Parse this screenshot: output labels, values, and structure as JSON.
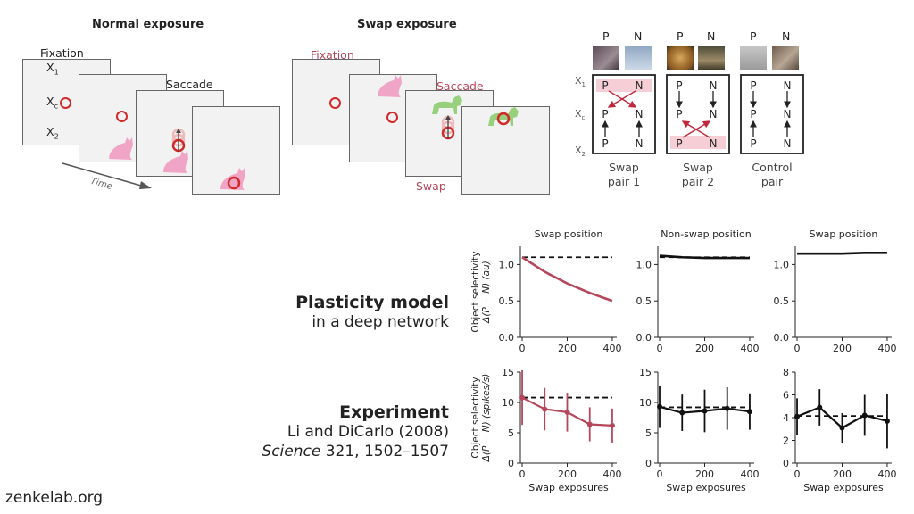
{
  "normal_exposure": {
    "title": "Normal exposure",
    "fixation": "Fixation",
    "saccade": "Saccade",
    "time": "Time",
    "x1": "X",
    "xc": "X",
    "x2": "X",
    "sub1": "1",
    "subc": "c",
    "sub2": "2"
  },
  "swap_exposure": {
    "title": "Swap exposure",
    "fixation": "Fixation",
    "saccade": "Saccade",
    "swap": "Swap"
  },
  "pairs": {
    "p": "P",
    "n": "N",
    "pair1": [
      "Swap",
      "pair 1"
    ],
    "pair2": [
      "Swap",
      "pair 2"
    ],
    "control": [
      "Control",
      "pair"
    ],
    "x1": "X",
    "xc": "X",
    "x2": "X",
    "sub1": "1",
    "subc": "c",
    "sub2": "2"
  },
  "rows": {
    "model_title": "Plasticity model",
    "model_sub": "in a deep network",
    "exp_title": "Experiment",
    "exp_ref": "Li and DiCarlo (2008)",
    "exp_journal": "Science",
    "exp_cite": " 321, 1502–1507"
  },
  "footer": "zenkelab.org",
  "chart_data": [
    {
      "type": "line",
      "title": "Swap position",
      "ylabel_top": "Object selectivity",
      "ylabel_bottom": "Δ(P − N) (au)",
      "x": [
        0,
        100,
        200,
        300,
        400
      ],
      "series": [
        {
          "values": [
            1.1,
            0.9,
            0.74,
            0.61,
            0.5
          ],
          "color": "#b5475a"
        }
      ],
      "baseline": 1.1,
      "ylim": [
        0,
        1.25
      ],
      "yticks": [
        0.0,
        0.5,
        1.0
      ],
      "xticks": [
        0,
        200,
        400
      ]
    },
    {
      "type": "line",
      "title": "Non-swap position",
      "x": [
        0,
        100,
        200,
        300,
        400
      ],
      "series": [
        {
          "values": [
            1.12,
            1.1,
            1.09,
            1.09,
            1.09
          ],
          "color": "#111111"
        }
      ],
      "baseline": 1.1,
      "ylim": [
        0,
        1.25
      ],
      "yticks": [
        0.0,
        0.5,
        1.0
      ],
      "xticks": [
        0,
        200,
        400
      ]
    },
    {
      "type": "line",
      "title": "Swap position",
      "x": [
        0,
        100,
        200,
        300,
        400
      ],
      "series": [
        {
          "values": [
            1.15,
            1.15,
            1.15,
            1.16,
            1.16
          ],
          "color": "#111111"
        }
      ],
      "ylim": [
        0,
        1.25
      ],
      "yticks": [
        0.0,
        0.5,
        1.0
      ],
      "xticks": [
        0,
        200,
        400
      ]
    },
    {
      "type": "line",
      "ylabel_top": "Object selectivity",
      "ylabel_bottom": "Δ(P − N) (spikes/s)",
      "xlabel": "Swap exposures",
      "x": [
        0,
        100,
        200,
        300,
        400
      ],
      "series": [
        {
          "values": [
            10.8,
            8.9,
            8.4,
            6.4,
            6.2
          ],
          "errors": [
            4.5,
            3.5,
            3.2,
            2.8,
            2.8
          ],
          "color": "#b5475a"
        }
      ],
      "baseline": 10.8,
      "ylim": [
        0,
        15
      ],
      "yticks": [
        0,
        5,
        10,
        15
      ],
      "xticks": [
        0,
        200,
        400
      ]
    },
    {
      "type": "line",
      "xlabel": "Swap exposures",
      "x": [
        0,
        100,
        200,
        300,
        400
      ],
      "series": [
        {
          "values": [
            9.3,
            8.3,
            8.6,
            9.0,
            8.5
          ],
          "errors": [
            3.5,
            3.0,
            3.5,
            3.5,
            3.0
          ],
          "color": "#111111"
        }
      ],
      "baseline": 9.2,
      "ylim": [
        0,
        15
      ],
      "yticks": [
        0,
        5,
        10,
        15
      ],
      "xticks": [
        0,
        200,
        400
      ]
    },
    {
      "type": "line",
      "xlabel": "Swap exposures",
      "x": [
        0,
        100,
        200,
        300,
        400
      ],
      "series": [
        {
          "values": [
            4.1,
            4.9,
            3.1,
            4.2,
            3.7
          ],
          "errors": [
            1.6,
            1.6,
            1.3,
            1.8,
            2.4
          ],
          "color": "#111111"
        }
      ],
      "baseline": 4.15,
      "ylim": [
        0,
        8
      ],
      "yticks": [
        0,
        2,
        4,
        6,
        8
      ],
      "xticks": [
        0,
        200,
        400
      ]
    }
  ]
}
